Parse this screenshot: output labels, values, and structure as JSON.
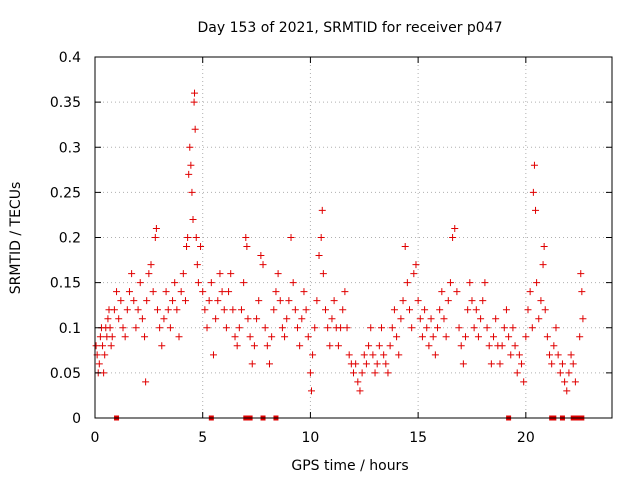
{
  "chart_data": {
    "type": "scatter",
    "title": "Day 153 of 2021, SRMTID for receiver p047",
    "xlabel": "GPS time / hours",
    "ylabel": "SRMTID / TECUs",
    "xlim": [
      0,
      24
    ],
    "ylim": [
      0,
      0.4
    ],
    "x_ticks": [
      0,
      5,
      10,
      15,
      20
    ],
    "x_tick_labels": [
      "0",
      "5",
      "10",
      "15",
      "20"
    ],
    "y_ticks": [
      0,
      0.05,
      0.1,
      0.15,
      0.2,
      0.25,
      0.3,
      0.35,
      0.4
    ],
    "y_tick_labels": [
      "0",
      "0.05",
      "0.1",
      "0.15",
      "0.2",
      "0.25",
      "0.3",
      "0.35",
      "0.4"
    ],
    "grid": true,
    "marker": "plus",
    "series_color": "#e00000",
    "series": [
      {
        "name": "SRMTID",
        "points": [
          [
            0.05,
            0.08
          ],
          [
            0.1,
            0.07
          ],
          [
            0.15,
            0.05
          ],
          [
            0.2,
            0.06
          ],
          [
            0.25,
            0.09
          ],
          [
            0.3,
            0.1
          ],
          [
            0.35,
            0.08
          ],
          [
            0.4,
            0.05
          ],
          [
            0.45,
            0.07
          ],
          [
            0.5,
            0.1
          ],
          [
            0.55,
            0.09
          ],
          [
            0.6,
            0.11
          ],
          [
            0.65,
            0.12
          ],
          [
            0.7,
            0.1
          ],
          [
            0.75,
            0.08
          ],
          [
            0.8,
            0.09
          ],
          [
            0.9,
            0.12
          ],
          [
            1.0,
            0.14
          ],
          [
            1.1,
            0.11
          ],
          [
            1.2,
            0.13
          ],
          [
            1.3,
            0.1
          ],
          [
            1.4,
            0.09
          ],
          [
            1.5,
            0.12
          ],
          [
            1.6,
            0.14
          ],
          [
            1.7,
            0.16
          ],
          [
            1.8,
            0.13
          ],
          [
            1.9,
            0.1
          ],
          [
            2.0,
            0.12
          ],
          [
            2.1,
            0.15
          ],
          [
            2.2,
            0.11
          ],
          [
            2.3,
            0.09
          ],
          [
            2.35,
            0.04
          ],
          [
            2.4,
            0.13
          ],
          [
            2.5,
            0.16
          ],
          [
            2.6,
            0.17
          ],
          [
            2.7,
            0.14
          ],
          [
            2.8,
            0.2
          ],
          [
            2.85,
            0.21
          ],
          [
            2.9,
            0.12
          ],
          [
            3.0,
            0.1
          ],
          [
            3.1,
            0.08
          ],
          [
            3.2,
            0.11
          ],
          [
            3.3,
            0.14
          ],
          [
            3.4,
            0.12
          ],
          [
            3.5,
            0.1
          ],
          [
            3.6,
            0.13
          ],
          [
            3.7,
            0.15
          ],
          [
            3.8,
            0.12
          ],
          [
            3.9,
            0.09
          ],
          [
            4.0,
            0.14
          ],
          [
            4.1,
            0.16
          ],
          [
            4.2,
            0.13
          ],
          [
            4.25,
            0.19
          ],
          [
            4.3,
            0.2
          ],
          [
            4.35,
            0.27
          ],
          [
            4.4,
            0.3
          ],
          [
            4.45,
            0.28
          ],
          [
            4.5,
            0.25
          ],
          [
            4.55,
            0.22
          ],
          [
            4.6,
            0.35
          ],
          [
            4.62,
            0.36
          ],
          [
            4.65,
            0.32
          ],
          [
            4.7,
            0.2
          ],
          [
            4.75,
            0.17
          ],
          [
            4.8,
            0.15
          ],
          [
            4.9,
            0.19
          ],
          [
            5.0,
            0.14
          ],
          [
            5.1,
            0.12
          ],
          [
            5.2,
            0.1
          ],
          [
            5.3,
            0.13
          ],
          [
            5.4,
            0.15
          ],
          [
            5.5,
            0.07
          ],
          [
            5.6,
            0.11
          ],
          [
            5.7,
            0.13
          ],
          [
            5.8,
            0.16
          ],
          [
            5.9,
            0.14
          ],
          [
            6.0,
            0.12
          ],
          [
            6.1,
            0.1
          ],
          [
            6.2,
            0.14
          ],
          [
            6.3,
            0.16
          ],
          [
            6.4,
            0.12
          ],
          [
            6.5,
            0.09
          ],
          [
            6.6,
            0.08
          ],
          [
            6.7,
            0.1
          ],
          [
            6.8,
            0.12
          ],
          [
            6.9,
            0.15
          ],
          [
            7.0,
            0.2
          ],
          [
            7.05,
            0.19
          ],
          [
            7.1,
            0.11
          ],
          [
            7.2,
            0.09
          ],
          [
            7.3,
            0.06
          ],
          [
            7.4,
            0.08
          ],
          [
            7.5,
            0.11
          ],
          [
            7.6,
            0.13
          ],
          [
            7.7,
            0.18
          ],
          [
            7.8,
            0.17
          ],
          [
            7.9,
            0.1
          ],
          [
            8.0,
            0.08
          ],
          [
            8.1,
            0.06
          ],
          [
            8.2,
            0.09
          ],
          [
            8.3,
            0.12
          ],
          [
            8.4,
            0.14
          ],
          [
            8.5,
            0.16
          ],
          [
            8.6,
            0.13
          ],
          [
            8.7,
            0.1
          ],
          [
            8.8,
            0.09
          ],
          [
            8.9,
            0.11
          ],
          [
            9.0,
            0.13
          ],
          [
            9.1,
            0.2
          ],
          [
            9.2,
            0.15
          ],
          [
            9.3,
            0.12
          ],
          [
            9.4,
            0.1
          ],
          [
            9.5,
            0.08
          ],
          [
            9.6,
            0.11
          ],
          [
            9.7,
            0.14
          ],
          [
            9.8,
            0.12
          ],
          [
            9.9,
            0.09
          ],
          [
            10.0,
            0.05
          ],
          [
            10.05,
            0.03
          ],
          [
            10.1,
            0.07
          ],
          [
            10.2,
            0.1
          ],
          [
            10.3,
            0.13
          ],
          [
            10.4,
            0.18
          ],
          [
            10.5,
            0.2
          ],
          [
            10.55,
            0.23
          ],
          [
            10.6,
            0.16
          ],
          [
            10.7,
            0.12
          ],
          [
            10.8,
            0.1
          ],
          [
            10.9,
            0.08
          ],
          [
            11.0,
            0.11
          ],
          [
            11.1,
            0.13
          ],
          [
            11.2,
            0.1
          ],
          [
            11.3,
            0.08
          ],
          [
            11.4,
            0.1
          ],
          [
            11.5,
            0.12
          ],
          [
            11.6,
            0.14
          ],
          [
            11.7,
            0.1
          ],
          [
            11.8,
            0.07
          ],
          [
            11.9,
            0.06
          ],
          [
            12.0,
            0.05
          ],
          [
            12.1,
            0.06
          ],
          [
            12.2,
            0.04
          ],
          [
            12.3,
            0.03
          ],
          [
            12.4,
            0.05
          ],
          [
            12.5,
            0.07
          ],
          [
            12.6,
            0.06
          ],
          [
            12.7,
            0.08
          ],
          [
            12.8,
            0.1
          ],
          [
            12.9,
            0.07
          ],
          [
            13.0,
            0.05
          ],
          [
            13.1,
            0.06
          ],
          [
            13.2,
            0.08
          ],
          [
            13.3,
            0.1
          ],
          [
            13.4,
            0.07
          ],
          [
            13.5,
            0.06
          ],
          [
            13.6,
            0.05
          ],
          [
            13.7,
            0.08
          ],
          [
            13.8,
            0.1
          ],
          [
            13.9,
            0.12
          ],
          [
            14.0,
            0.09
          ],
          [
            14.1,
            0.07
          ],
          [
            14.2,
            0.11
          ],
          [
            14.3,
            0.13
          ],
          [
            14.4,
            0.19
          ],
          [
            14.5,
            0.15
          ],
          [
            14.6,
            0.12
          ],
          [
            14.7,
            0.1
          ],
          [
            14.8,
            0.16
          ],
          [
            14.9,
            0.17
          ],
          [
            15.0,
            0.13
          ],
          [
            15.1,
            0.11
          ],
          [
            15.2,
            0.09
          ],
          [
            15.3,
            0.12
          ],
          [
            15.4,
            0.1
          ],
          [
            15.5,
            0.08
          ],
          [
            15.6,
            0.11
          ],
          [
            15.7,
            0.09
          ],
          [
            15.8,
            0.07
          ],
          [
            15.9,
            0.1
          ],
          [
            16.0,
            0.12
          ],
          [
            16.1,
            0.14
          ],
          [
            16.2,
            0.11
          ],
          [
            16.3,
            0.09
          ],
          [
            16.4,
            0.13
          ],
          [
            16.5,
            0.15
          ],
          [
            16.6,
            0.2
          ],
          [
            16.7,
            0.21
          ],
          [
            16.8,
            0.14
          ],
          [
            16.9,
            0.1
          ],
          [
            17.0,
            0.08
          ],
          [
            17.1,
            0.06
          ],
          [
            17.2,
            0.09
          ],
          [
            17.3,
            0.12
          ],
          [
            17.4,
            0.15
          ],
          [
            17.5,
            0.13
          ],
          [
            17.6,
            0.1
          ],
          [
            17.7,
            0.12
          ],
          [
            17.8,
            0.09
          ],
          [
            17.9,
            0.11
          ],
          [
            18.0,
            0.13
          ],
          [
            18.1,
            0.15
          ],
          [
            18.2,
            0.1
          ],
          [
            18.3,
            0.08
          ],
          [
            18.4,
            0.06
          ],
          [
            18.5,
            0.09
          ],
          [
            18.6,
            0.11
          ],
          [
            18.7,
            0.08
          ],
          [
            18.8,
            0.06
          ],
          [
            18.9,
            0.08
          ],
          [
            19.0,
            0.1
          ],
          [
            19.1,
            0.12
          ],
          [
            19.2,
            0.09
          ],
          [
            19.3,
            0.07
          ],
          [
            19.4,
            0.1
          ],
          [
            19.5,
            0.08
          ],
          [
            19.6,
            0.05
          ],
          [
            19.7,
            0.07
          ],
          [
            19.8,
            0.06
          ],
          [
            19.9,
            0.04
          ],
          [
            20.0,
            0.09
          ],
          [
            20.1,
            0.12
          ],
          [
            20.2,
            0.14
          ],
          [
            20.3,
            0.1
          ],
          [
            20.35,
            0.25
          ],
          [
            20.4,
            0.28
          ],
          [
            20.45,
            0.23
          ],
          [
            20.5,
            0.15
          ],
          [
            20.6,
            0.11
          ],
          [
            20.7,
            0.13
          ],
          [
            20.8,
            0.17
          ],
          [
            20.85,
            0.19
          ],
          [
            20.9,
            0.12
          ],
          [
            21.0,
            0.09
          ],
          [
            21.1,
            0.07
          ],
          [
            21.2,
            0.06
          ],
          [
            21.3,
            0.08
          ],
          [
            21.4,
            0.1
          ],
          [
            21.5,
            0.07
          ],
          [
            21.6,
            0.05
          ],
          [
            21.7,
            0.06
          ],
          [
            21.8,
            0.04
          ],
          [
            21.9,
            0.03
          ],
          [
            22.0,
            0.05
          ],
          [
            22.1,
            0.07
          ],
          [
            22.2,
            0.06
          ],
          [
            22.3,
            0.04
          ],
          [
            22.5,
            0.09
          ],
          [
            22.55,
            0.16
          ],
          [
            22.6,
            0.14
          ],
          [
            22.65,
            0.11
          ]
        ]
      }
    ],
    "gap_markers_x": [
      1.0,
      5.4,
      7.0,
      7.1,
      7.2,
      7.8,
      8.4,
      19.2,
      21.2,
      21.3,
      21.7,
      22.2,
      22.3,
      22.5,
      22.6
    ]
  }
}
